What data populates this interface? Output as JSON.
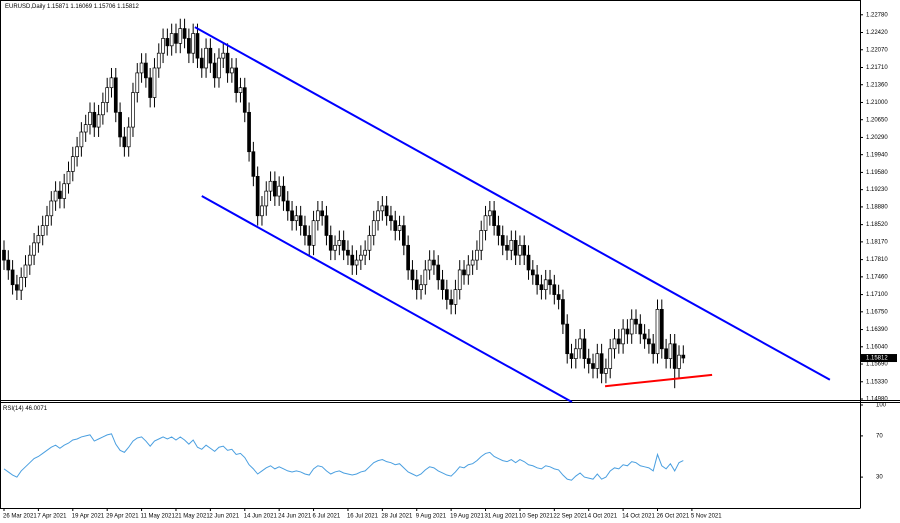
{
  "chart_data": {
    "type": "candlestick",
    "symbol": "EURUSD,Daily",
    "up_color": "#ffffff",
    "down_color": "#000000",
    "open": [
      1.18,
      1.178,
      1.176,
      1.173,
      1.1719,
      1.1745,
      1.177,
      1.179,
      1.1815,
      1.183,
      1.185,
      1.187,
      1.19,
      1.192,
      1.1905,
      1.1935,
      1.196,
      1.199,
      1.201,
      1.204,
      1.2055,
      1.208,
      1.205,
      1.2075,
      1.21,
      1.213,
      1.215,
      1.208,
      1.203,
      1.201,
      1.205,
      1.212,
      1.216,
      1.218,
      1.215,
      1.211,
      1.217,
      1.22,
      1.223,
      1.2215,
      1.224,
      1.222,
      1.225,
      1.223,
      1.22,
      1.224,
      1.219,
      1.217,
      1.221,
      1.218,
      1.215,
      1.219,
      1.22,
      1.216,
      1.217,
      1.212,
      1.213,
      1.208,
      1.2,
      1.195,
      1.187,
      1.189,
      1.192,
      1.194,
      1.191,
      1.193,
      1.19,
      1.188,
      1.186,
      1.187,
      1.185,
      1.183,
      1.181,
      1.186,
      1.188,
      1.187,
      1.183,
      1.18,
      1.181,
      1.182,
      1.18,
      1.179,
      1.177,
      1.178,
      1.179,
      1.18,
      1.183,
      1.186,
      1.188,
      1.189,
      1.187,
      1.186,
      1.184,
      1.185,
      1.181,
      1.176,
      1.174,
      1.172,
      1.173,
      1.176,
      1.178,
      1.177,
      1.174,
      1.172,
      1.17,
      1.169,
      1.172,
      1.176,
      1.175,
      1.177,
      1.178,
      1.18,
      1.184,
      1.187,
      1.188,
      1.185,
      1.183,
      1.181,
      1.18,
      1.182,
      1.179,
      1.181,
      1.179,
      1.176,
      1.175,
      1.173,
      1.172,
      1.174,
      1.173,
      1.171,
      1.17,
      1.165,
      1.159,
      1.158,
      1.16,
      1.162,
      1.158,
      1.157,
      1.156,
      1.159,
      1.155,
      1.156,
      1.16,
      1.162,
      1.161,
      1.164,
      1.163,
      1.166,
      1.165,
      1.163,
      1.162,
      1.161,
      1.159,
      1.168,
      1.16,
      1.158,
      1.161,
      1.156,
      1.15871
    ],
    "high": [
      1.182,
      1.18,
      1.178,
      1.175,
      1.1765,
      1.179,
      1.181,
      1.1835,
      1.185,
      1.187,
      1.189,
      1.192,
      1.194,
      1.194,
      1.1955,
      1.198,
      1.201,
      1.203,
      1.206,
      1.2075,
      1.21,
      1.21,
      1.2095,
      1.212,
      1.215,
      1.217,
      1.217,
      1.21,
      1.205,
      1.207,
      1.214,
      1.218,
      1.22,
      1.22,
      1.217,
      1.219,
      1.222,
      1.225,
      1.225,
      1.226,
      1.226,
      1.227,
      1.227,
      1.225,
      1.226,
      1.226,
      1.221,
      1.223,
      1.223,
      1.22,
      1.221,
      1.222,
      1.222,
      1.219,
      1.219,
      1.215,
      1.215,
      1.21,
      1.202,
      1.197,
      1.191,
      1.194,
      1.196,
      1.196,
      1.195,
      1.195,
      1.192,
      1.19,
      1.189,
      1.189,
      1.187,
      1.185,
      1.188,
      1.19,
      1.19,
      1.189,
      1.185,
      1.183,
      1.184,
      1.184,
      1.182,
      1.181,
      1.18,
      1.181,
      1.182,
      1.185,
      1.188,
      1.19,
      1.191,
      1.191,
      1.189,
      1.188,
      1.187,
      1.187,
      1.183,
      1.178,
      1.176,
      1.175,
      1.178,
      1.18,
      1.18,
      1.179,
      1.176,
      1.174,
      1.172,
      1.174,
      1.178,
      1.178,
      1.179,
      1.18,
      1.182,
      1.186,
      1.189,
      1.19,
      1.19,
      1.187,
      1.185,
      1.183,
      1.184,
      1.184,
      1.183,
      1.183,
      1.181,
      1.178,
      1.177,
      1.175,
      1.176,
      1.176,
      1.175,
      1.173,
      1.172,
      1.167,
      1.161,
      1.162,
      1.164,
      1.164,
      1.16,
      1.159,
      1.161,
      1.161,
      1.158,
      1.162,
      1.164,
      1.164,
      1.166,
      1.166,
      1.168,
      1.168,
      1.167,
      1.165,
      1.164,
      1.163,
      1.17,
      1.17,
      1.162,
      1.163,
      1.163,
      1.1607,
      1.16069
    ],
    "low": [
      1.176,
      1.174,
      1.171,
      1.1699,
      1.1699,
      1.1725,
      1.175,
      1.177,
      1.1795,
      1.181,
      1.183,
      1.185,
      1.188,
      1.1885,
      1.1885,
      1.1915,
      1.194,
      1.197,
      1.199,
      1.202,
      1.2035,
      1.203,
      1.203,
      1.2055,
      1.208,
      1.211,
      1.206,
      1.201,
      1.199,
      1.199,
      1.203,
      1.21,
      1.214,
      1.213,
      1.209,
      1.209,
      1.215,
      1.218,
      1.2195,
      1.2195,
      1.22,
      1.22,
      1.221,
      1.218,
      1.218,
      1.217,
      1.215,
      1.215,
      1.216,
      1.213,
      1.213,
      1.217,
      1.214,
      1.214,
      1.21,
      1.21,
      1.206,
      1.198,
      1.193,
      1.185,
      1.185,
      1.187,
      1.19,
      1.189,
      1.189,
      1.188,
      1.186,
      1.184,
      1.184,
      1.183,
      1.181,
      1.179,
      1.179,
      1.184,
      1.185,
      1.181,
      1.178,
      1.178,
      1.179,
      1.178,
      1.177,
      1.175,
      1.175,
      1.176,
      1.177,
      1.178,
      1.181,
      1.184,
      1.186,
      1.185,
      1.184,
      1.182,
      1.182,
      1.179,
      1.174,
      1.172,
      1.17,
      1.17,
      1.171,
      1.174,
      1.175,
      1.172,
      1.17,
      1.168,
      1.167,
      1.167,
      1.17,
      1.173,
      1.173,
      1.175,
      1.176,
      1.178,
      1.182,
      1.185,
      1.183,
      1.181,
      1.179,
      1.178,
      1.178,
      1.177,
      1.177,
      1.177,
      1.174,
      1.173,
      1.171,
      1.17,
      1.17,
      1.171,
      1.169,
      1.168,
      1.163,
      1.157,
      1.156,
      1.156,
      1.158,
      1.156,
      1.155,
      1.154,
      1.154,
      1.153,
      1.153,
      1.154,
      1.158,
      1.159,
      1.159,
      1.161,
      1.161,
      1.163,
      1.161,
      1.16,
      1.159,
      1.157,
      1.157,
      1.158,
      1.156,
      1.156,
      1.152,
      1.154,
      1.15706
    ],
    "close": [
      1.178,
      1.176,
      1.173,
      1.1719,
      1.1745,
      1.177,
      1.179,
      1.1815,
      1.183,
      1.185,
      1.187,
      1.19,
      1.192,
      1.1905,
      1.1935,
      1.196,
      1.199,
      1.201,
      1.204,
      1.2055,
      1.208,
      1.205,
      1.2075,
      1.21,
      1.213,
      1.215,
      1.208,
      1.203,
      1.201,
      1.205,
      1.212,
      1.216,
      1.218,
      1.215,
      1.211,
      1.217,
      1.22,
      1.223,
      1.2215,
      1.224,
      1.222,
      1.225,
      1.223,
      1.22,
      1.224,
      1.219,
      1.217,
      1.221,
      1.218,
      1.215,
      1.219,
      1.22,
      1.216,
      1.217,
      1.212,
      1.213,
      1.208,
      1.2,
      1.195,
      1.187,
      1.189,
      1.192,
      1.194,
      1.191,
      1.193,
      1.19,
      1.188,
      1.186,
      1.187,
      1.185,
      1.183,
      1.181,
      1.186,
      1.188,
      1.187,
      1.183,
      1.18,
      1.181,
      1.182,
      1.18,
      1.179,
      1.177,
      1.178,
      1.179,
      1.18,
      1.183,
      1.186,
      1.188,
      1.189,
      1.187,
      1.186,
      1.184,
      1.185,
      1.181,
      1.176,
      1.174,
      1.172,
      1.173,
      1.176,
      1.178,
      1.177,
      1.174,
      1.172,
      1.17,
      1.169,
      1.172,
      1.176,
      1.175,
      1.177,
      1.178,
      1.18,
      1.184,
      1.187,
      1.188,
      1.185,
      1.183,
      1.181,
      1.18,
      1.182,
      1.179,
      1.181,
      1.179,
      1.176,
      1.175,
      1.173,
      1.172,
      1.174,
      1.173,
      1.171,
      1.17,
      1.165,
      1.159,
      1.158,
      1.16,
      1.162,
      1.158,
      1.157,
      1.156,
      1.159,
      1.155,
      1.156,
      1.16,
      1.162,
      1.161,
      1.164,
      1.163,
      1.166,
      1.165,
      1.163,
      1.162,
      1.161,
      1.159,
      1.168,
      1.16,
      1.158,
      1.161,
      1.156,
      1.1587,
      1.15812
    ],
    "xlim": [
      -0.93,
      199.1
    ],
    "xticks": [
      {
        "value": 0,
        "label": "26 Mar 2021"
      },
      {
        "value": 8,
        "label": "7 Apr 2021"
      },
      {
        "value": 16,
        "label": "19 Apr 2021"
      },
      {
        "value": 24,
        "label": "29 Apr 2021"
      },
      {
        "value": 32,
        "label": "11 May 2021"
      },
      {
        "value": 40,
        "label": "21 May 2021"
      },
      {
        "value": 48,
        "label": "2 Jun 2021"
      },
      {
        "value": 56,
        "label": "14 Jun 2021"
      },
      {
        "value": 64,
        "label": "24 Jun 2021"
      },
      {
        "value": 72,
        "label": "6 Jul 2021"
      },
      {
        "value": 80,
        "label": "16 Jul 2021"
      },
      {
        "value": 88,
        "label": "28 Jul 2021"
      },
      {
        "value": 96,
        "label": "9 Aug 2021"
      },
      {
        "value": 104,
        "label": "19 Aug 2021"
      },
      {
        "value": 112,
        "label": "31 Aug 2021"
      },
      {
        "value": 120,
        "label": "10 Sep 2021"
      },
      {
        "value": 128,
        "label": "22 Sep 2021"
      },
      {
        "value": 136,
        "label": "4 Oct 2021"
      },
      {
        "value": 144,
        "label": "14 Oct 2021"
      },
      {
        "value": 152,
        "label": "26 Oct 2021"
      },
      {
        "value": 160,
        "label": "5 Nov 2021"
      }
    ],
    "ylim": [
      1.1496,
      1.2308
    ],
    "yticks": [
      {
        "value": 1.2278,
        "label": "1.22780"
      },
      {
        "value": 1.2242,
        "label": "1.22420"
      },
      {
        "value": 1.2207,
        "label": "1.22070"
      },
      {
        "value": 1.2171,
        "label": "1.21710"
      },
      {
        "value": 1.2136,
        "label": "1.21360"
      },
      {
        "value": 1.21,
        "label": "1.21000"
      },
      {
        "value": 1.2065,
        "label": "1.20650"
      },
      {
        "value": 1.2029,
        "label": "1.20290"
      },
      {
        "value": 1.1994,
        "label": "1.19940"
      },
      {
        "value": 1.1958,
        "label": "1.19580"
      },
      {
        "value": 1.1923,
        "label": "1.19230"
      },
      {
        "value": 1.1888,
        "label": "1.18880"
      },
      {
        "value": 1.1852,
        "label": "1.18520"
      },
      {
        "value": 1.1817,
        "label": "1.18170"
      },
      {
        "value": 1.1781,
        "label": "1.17810"
      },
      {
        "value": 1.1746,
        "label": "1.17460"
      },
      {
        "value": 1.171,
        "label": "1.17100"
      },
      {
        "value": 1.1675,
        "label": "1.16750"
      },
      {
        "value": 1.1639,
        "label": "1.16390"
      },
      {
        "value": 1.1604,
        "label": "1.16040"
      },
      {
        "value": 1.1569,
        "label": "1.15690"
      },
      {
        "value": 1.1533,
        "label": "1.15330"
      },
      {
        "value": 1.1498,
        "label": "1.14980"
      }
    ],
    "trendlines": [
      {
        "color": "#0000ff",
        "x": [
          44.4,
          192.1
        ],
        "y": [
          1.2253,
          1.1537
        ]
      },
      {
        "color": "#0000ff",
        "x": [
          46.0,
          132.1
        ],
        "y": [
          1.191,
          1.1492
        ]
      },
      {
        "color": "#ff0000",
        "x": [
          139.8,
          164.7
        ],
        "y": [
          1.1524,
          1.1547
        ]
      }
    ],
    "rsi": {
      "name": "RSI(14)",
      "color": "#4a9fe0",
      "ylim": [
        0,
        100
      ],
      "yticks": [
        100,
        70,
        30
      ],
      "values": [
        38,
        35,
        32,
        30,
        36,
        40,
        44,
        48,
        50,
        53,
        56,
        59,
        61,
        58,
        61,
        63,
        66,
        67,
        69,
        70,
        71,
        65,
        67,
        69,
        71,
        72,
        62,
        56,
        54,
        59,
        65,
        68,
        69,
        65,
        60,
        65,
        67,
        69,
        67,
        69,
        66,
        69,
        66,
        62,
        66,
        59,
        57,
        61,
        58,
        55,
        59,
        60,
        56,
        57,
        52,
        53,
        49,
        42,
        38,
        33,
        36,
        39,
        41,
        38,
        40,
        38,
        36,
        35,
        36,
        35,
        33,
        32,
        38,
        41,
        40,
        36,
        33,
        35,
        36,
        34,
        33,
        32,
        33,
        35,
        36,
        40,
        44,
        46,
        47,
        45,
        44,
        42,
        43,
        39,
        35,
        33,
        31,
        33,
        37,
        40,
        39,
        36,
        34,
        32,
        31,
        35,
        40,
        39,
        42,
        43,
        46,
        50,
        53,
        54,
        50,
        48,
        46,
        45,
        47,
        44,
        47,
        45,
        42,
        41,
        39,
        38,
        41,
        40,
        38,
        37,
        32,
        28,
        27,
        31,
        34,
        30,
        29,
        28,
        33,
        28,
        30,
        36,
        39,
        38,
        42,
        41,
        45,
        44,
        41,
        40,
        39,
        36,
        52,
        41,
        38,
        43,
        36,
        44,
        46.0071
      ]
    }
  }
}
